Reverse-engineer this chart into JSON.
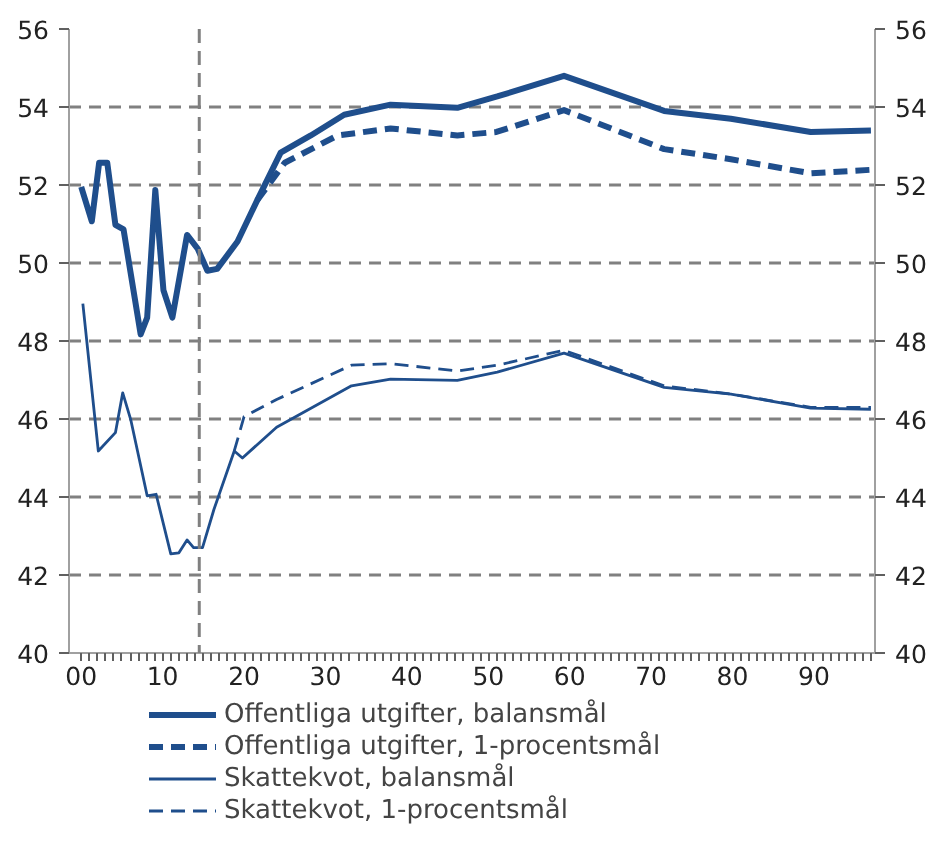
{
  "chart_data": {
    "type": "line",
    "xlim": [
      -1.5,
      97.5
    ],
    "xticks": [
      {
        "value": 0,
        "label": "00"
      },
      {
        "value": 1,
        "label": null
      },
      {
        "value": 2,
        "label": null
      },
      {
        "value": 3,
        "label": null
      },
      {
        "value": 4,
        "label": null
      },
      {
        "value": 5,
        "label": null
      },
      {
        "value": 6,
        "label": null
      },
      {
        "value": 7,
        "label": null
      },
      {
        "value": 8,
        "label": null
      },
      {
        "value": 9,
        "label": null
      },
      10,
      {
        "value": 11,
        "label": null
      },
      {
        "value": 12,
        "label": null
      },
      {
        "value": 13,
        "label": null
      },
      {
        "value": 14,
        "label": null
      },
      {
        "value": 15,
        "label": null
      },
      {
        "value": 16,
        "label": null
      },
      {
        "value": 17,
        "label": null
      },
      {
        "value": 18,
        "label": null
      },
      {
        "value": 19,
        "label": null
      },
      20,
      {
        "value": 21,
        "label": null
      },
      {
        "value": 22,
        "label": null
      },
      {
        "value": 23,
        "label": null
      },
      {
        "value": 24,
        "label": null
      },
      {
        "value": 25,
        "label": null
      },
      {
        "value": 26,
        "label": null
      },
      {
        "value": 27,
        "label": null
      },
      {
        "value": 28,
        "label": null
      },
      {
        "value": 29,
        "label": null
      },
      30,
      {
        "value": 31,
        "label": null
      },
      {
        "value": 32,
        "label": null
      },
      {
        "value": 33,
        "label": null
      },
      {
        "value": 34,
        "label": null
      },
      {
        "value": 35,
        "label": null
      },
      {
        "value": 36,
        "label": null
      },
      {
        "value": 37,
        "label": null
      },
      {
        "value": 38,
        "label": null
      },
      {
        "value": 39,
        "label": null
      },
      40,
      {
        "value": 41,
        "label": null
      },
      {
        "value": 42,
        "label": null
      },
      {
        "value": 43,
        "label": null
      },
      {
        "value": 44,
        "label": null
      },
      {
        "value": 45,
        "label": null
      },
      {
        "value": 46,
        "label": null
      },
      {
        "value": 47,
        "label": null
      },
      {
        "value": 48,
        "label": null
      },
      {
        "value": 49,
        "label": null
      },
      50,
      {
        "value": 51,
        "label": null
      },
      {
        "value": 52,
        "label": null
      },
      {
        "value": 53,
        "label": null
      },
      {
        "value": 54,
        "label": null
      },
      {
        "value": 55,
        "label": null
      },
      {
        "value": 56,
        "label": null
      },
      {
        "value": 57,
        "label": null
      },
      {
        "value": 58,
        "label": null
      },
      {
        "value": 59,
        "label": null
      },
      60,
      {
        "value": 61,
        "label": null
      },
      {
        "value": 62,
        "label": null
      },
      {
        "value": 63,
        "label": null
      },
      {
        "value": 64,
        "label": null
      },
      {
        "value": 65,
        "label": null
      },
      {
        "value": 66,
        "label": null
      },
      {
        "value": 67,
        "label": null
      },
      {
        "value": 68,
        "label": null
      },
      {
        "value": 69,
        "label": null
      },
      70,
      {
        "value": 71,
        "label": null
      },
      {
        "value": 72,
        "label": null
      },
      {
        "value": 73,
        "label": null
      },
      {
        "value": 74,
        "label": null
      },
      {
        "value": 75,
        "label": null
      },
      {
        "value": 76,
        "label": null
      },
      {
        "value": 77,
        "label": null
      },
      {
        "value": 78,
        "label": null
      },
      {
        "value": 79,
        "label": null
      },
      80,
      {
        "value": 81,
        "label": null
      },
      {
        "value": 82,
        "label": null
      },
      {
        "value": 83,
        "label": null
      },
      {
        "value": 84,
        "label": null
      },
      {
        "value": 85,
        "label": null
      },
      {
        "value": 86,
        "label": null
      },
      {
        "value": 87,
        "label": null
      },
      {
        "value": 88,
        "label": null
      },
      {
        "value": 89,
        "label": null
      },
      90,
      {
        "value": 91,
        "label": null
      },
      {
        "value": 92,
        "label": null
      },
      {
        "value": 93,
        "label": null
      },
      {
        "value": 94,
        "label": null
      },
      {
        "value": 95,
        "label": null
      },
      {
        "value": 96,
        "label": null
      },
      {
        "value": 97,
        "label": null
      }
    ],
    "ylim": [
      40,
      56
    ],
    "yticks": [
      40,
      42,
      44,
      46,
      48,
      50,
      52,
      54,
      56
    ],
    "y2lim": [
      40,
      56
    ],
    "y2ticks": [
      40,
      42,
      44,
      46,
      48,
      50,
      52,
      54,
      56
    ],
    "grid": "y",
    "legend": "bottom",
    "marker": "none",
    "ref_lines": [
      {
        "axis": "x",
        "value": 14.5,
        "color": "#808080",
        "line_style": "dashed"
      }
    ],
    "series": [
      {
        "name": "Offentliga utgifter, balansmål",
        "color": "#1f4e8c",
        "line_style": "solid",
        "x": [
          0,
          1.3,
          2.2,
          3.2,
          4.2,
          5.2,
          7.3,
          8.1,
          9.1,
          10.1,
          11.2,
          13,
          14.3,
          15.5,
          16.7,
          19.2,
          21.6,
          24.5,
          28.2,
          32.3,
          38,
          46.2,
          51.1,
          59.3,
          71.6,
          79.8,
          89.6,
          97
        ],
        "values": [
          51.95,
          51.07,
          52.57,
          52.57,
          50.98,
          50.86,
          48.17,
          48.6,
          51.87,
          49.3,
          48.6,
          50.72,
          50.37,
          49.8,
          49.85,
          50.55,
          51.6,
          52.83,
          53.27,
          53.8,
          54.06,
          53.98,
          54.27,
          54.8,
          53.9,
          53.7,
          53.36,
          53.4
        ]
      },
      {
        "name": "Offentliga utgifter, 1-procentsmål",
        "color": "#1f4e8c",
        "line_style": "dashed",
        "x": [
          21.6,
          25,
          31.5,
          38,
          46.2,
          51,
          59.3,
          71.6,
          79.8,
          89.6,
          97
        ],
        "values": [
          51.6,
          52.57,
          53.27,
          53.45,
          53.27,
          53.36,
          53.92,
          52.92,
          52.66,
          52.3,
          52.39
        ]
      },
      {
        "name": "Skattekvot, balansmål",
        "color": "#1f4e8c",
        "line_style": "solid",
        "x": [
          0.2,
          2.1,
          4.2,
          5.1,
          6.1,
          8.1,
          9.2,
          11,
          12,
          13,
          13.8,
          14.9,
          16.3,
          18.8,
          19.8,
          24,
          33.2,
          38,
          46.2,
          51.1,
          59.3,
          71.6,
          79.8,
          89.6,
          97
        ],
        "values": [
          48.96,
          45.18,
          45.65,
          46.67,
          45.97,
          44.03,
          44.07,
          42.54,
          42.57,
          42.9,
          42.7,
          42.7,
          43.68,
          45.18,
          45.0,
          45.79,
          46.85,
          47.02,
          46.99,
          47.2,
          47.69,
          46.81,
          46.64,
          46.28,
          46.25
        ]
      },
      {
        "name": "Skattekvot, 1-procentsmål",
        "color": "#1f4e8c",
        "line_style": "dashed",
        "x": [
          18.8,
          20,
          24,
          33.2,
          38,
          46.2,
          51.1,
          59.3,
          71.6,
          79.8,
          89.6,
          97
        ],
        "values": [
          45.18,
          46.06,
          46.5,
          47.38,
          47.42,
          47.23,
          47.38,
          47.76,
          46.85,
          46.64,
          46.3,
          46.3
        ]
      }
    ]
  }
}
